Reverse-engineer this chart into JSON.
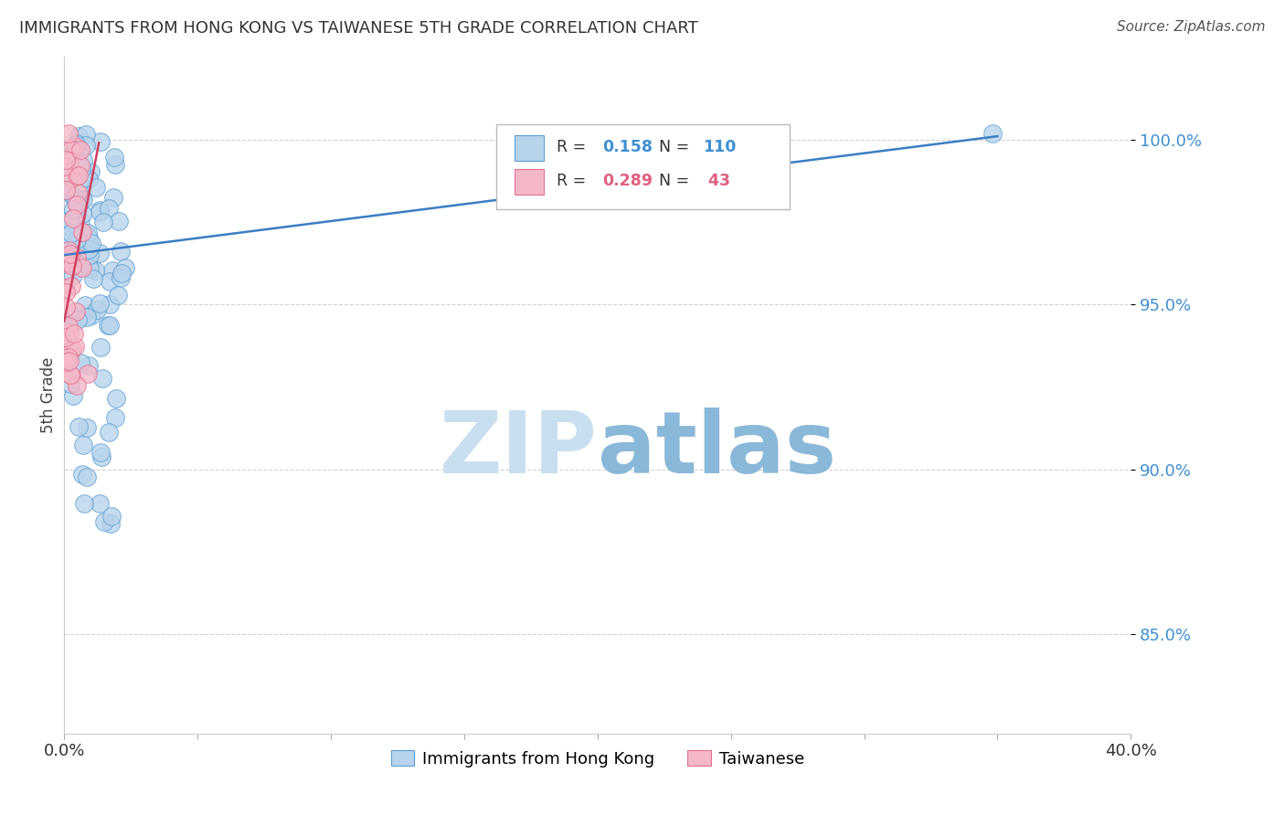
{
  "title": "IMMIGRANTS FROM HONG KONG VS TAIWANESE 5TH GRADE CORRELATION CHART",
  "source": "Source: ZipAtlas.com",
  "ylabel_label": "5th Grade",
  "R_hk": 0.158,
  "N_hk": 110,
  "R_tw": 0.289,
  "N_tw": 43,
  "color_hk_fill": "#b8d4ec",
  "color_hk_edge": "#5a9fd4",
  "color_hk_line": "#3a7ec4",
  "color_tw_fill": "#f5b8c8",
  "color_tw_edge": "#e07090",
  "color_tw_line": "#d04060",
  "watermark_zip_color": "#c8dff0",
  "watermark_atlas_color": "#8ab8d8",
  "background_color": "#ffffff",
  "xlim": [
    0.0,
    0.4
  ],
  "ylim": [
    0.82,
    1.025
  ],
  "ytick_values": [
    0.85,
    0.9,
    0.95,
    1.0
  ],
  "grid_color": "#cccccc",
  "legend_box_color": "#e8e8e8",
  "title_fontsize": 13,
  "source_fontsize": 11,
  "tick_fontsize": 13,
  "ylabel_fontsize": 12,
  "legend_fontsize": 13,
  "marker_size": 200
}
